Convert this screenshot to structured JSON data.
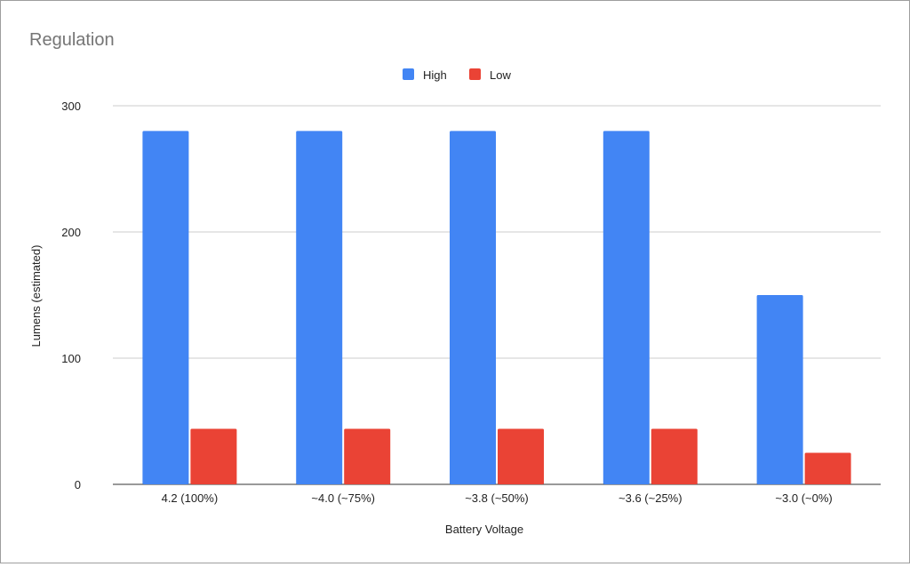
{
  "chart_data": {
    "type": "bar",
    "title": "Regulation",
    "xlabel": "Battery Voltage",
    "ylabel": "Lumens (estimated)",
    "categories": [
      "4.2 (100%)",
      "~4.0 (~75%)",
      "~3.8 (~50%)",
      "~3.6 (~25%)",
      "~3.0 (~0%)"
    ],
    "series": [
      {
        "name": "High",
        "color": "#4285f4",
        "values": [
          280,
          280,
          280,
          280,
          150
        ]
      },
      {
        "name": "Low",
        "color": "#ea4335",
        "values": [
          44,
          44,
          44,
          44,
          25
        ]
      }
    ],
    "ylim": [
      0,
      300
    ],
    "yticks": [
      0,
      100,
      200,
      300
    ],
    "grid": true,
    "legend": "top-center"
  }
}
